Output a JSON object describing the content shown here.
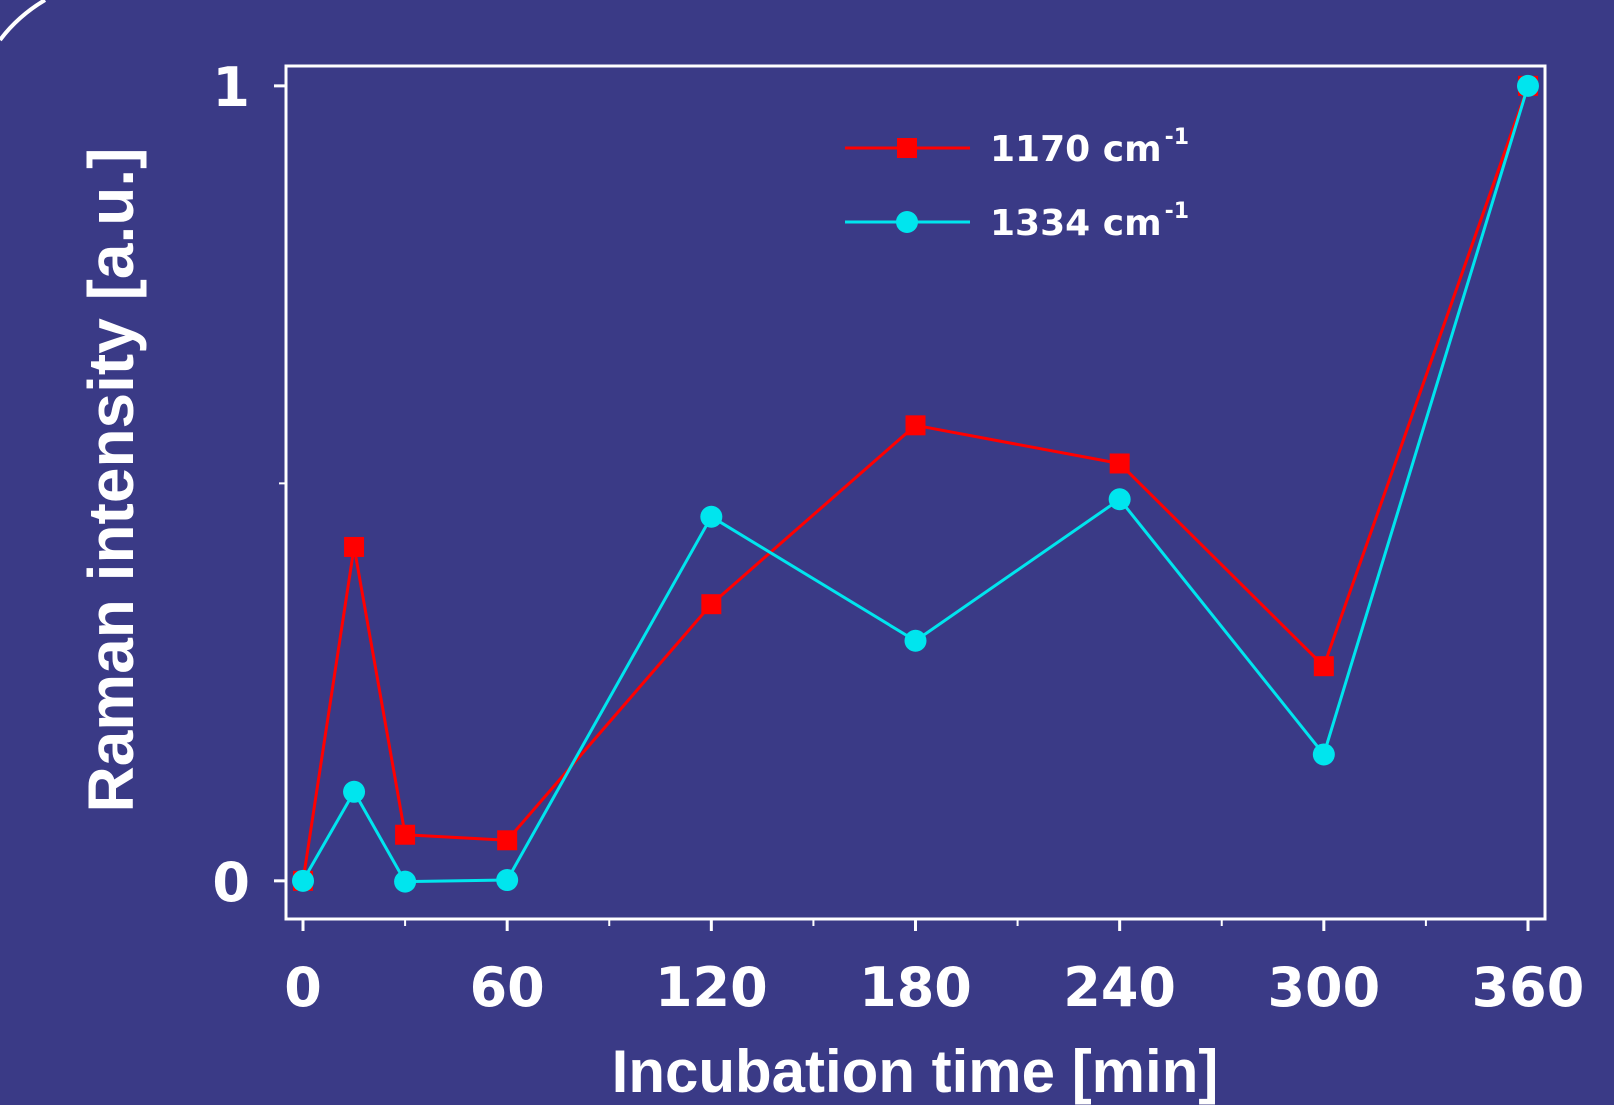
{
  "colors": {
    "background": "#3a3a86",
    "axis": "#ffffff",
    "series_1170": "#ff0000",
    "series_1334": "#00e5ee"
  },
  "chart_data": {
    "type": "line",
    "xlabel": "Incubation time [min]",
    "ylabel": "Raman intensity [a.u.]",
    "xlim": [
      -5,
      365
    ],
    "ylim": [
      -0.048,
      1.025
    ],
    "x_ticks": [
      0,
      60,
      120,
      180,
      240,
      300,
      360
    ],
    "x_minor_ticks": [
      30,
      90,
      150,
      210,
      270,
      330
    ],
    "y_ticks": [
      0,
      1
    ],
    "y_minor_ticks": [
      0.5
    ],
    "grid": false,
    "legend_position": "top-center",
    "series": [
      {
        "name": "1170 cm",
        "sup": "-1",
        "marker": "square",
        "color": "#ff0000",
        "x": [
          0,
          15,
          30,
          60,
          120,
          180,
          240,
          300,
          360
        ],
        "y": [
          0,
          0.42,
          0.058,
          0.051,
          0.348,
          0.573,
          0.525,
          0.27,
          1
        ]
      },
      {
        "name": "1334 cm",
        "sup": "-1",
        "marker": "circle",
        "color": "#00e5ee",
        "x": [
          0,
          15,
          30,
          60,
          120,
          180,
          240,
          300,
          360
        ],
        "y": [
          0,
          0.112,
          -0.001,
          0.001,
          0.458,
          0.302,
          0.48,
          0.159,
          1
        ]
      }
    ]
  }
}
